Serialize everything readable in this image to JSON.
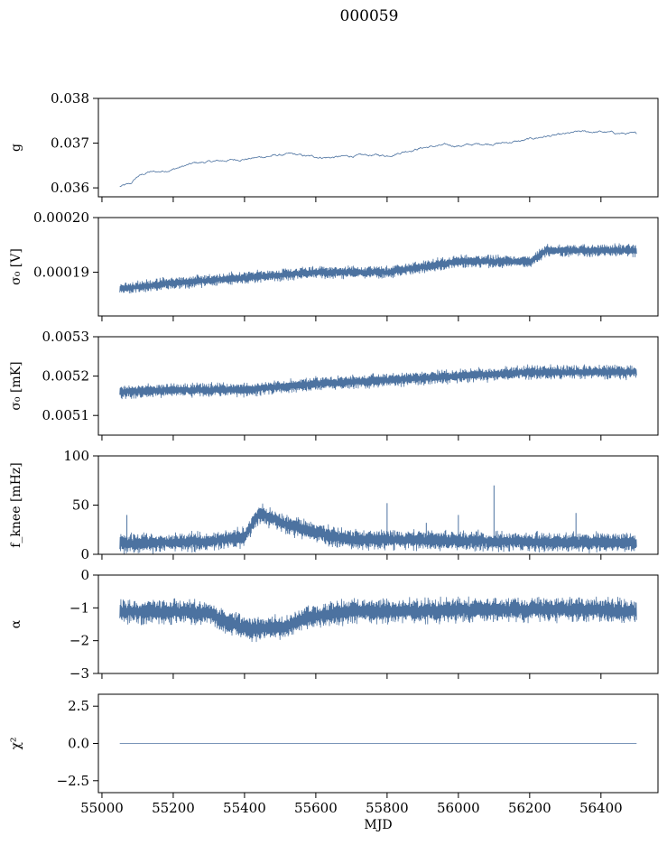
{
  "title": "000059",
  "chart_data": [
    {
      "type": "line",
      "ylabel": "g",
      "ylim": [
        0.0358,
        0.038
      ],
      "yticks": [
        0.036,
        0.037,
        0.038
      ],
      "ytick_labels": [
        "0.036",
        "0.037",
        "0.038"
      ],
      "xlim": [
        54990,
        56560
      ],
      "color": "#4c72a0",
      "style": "trace",
      "noise": 2e-05,
      "series": [
        {
          "x": [
            55050,
            55080,
            55100,
            55130,
            55160,
            55200,
            55260,
            55300,
            55360,
            55420,
            55480,
            55530,
            55580,
            55640,
            55700,
            55760,
            55800,
            55850,
            55900,
            55960,
            56000,
            56060,
            56120,
            56180,
            56240,
            56290,
            56340,
            56400,
            56450,
            56500
          ],
          "y": [
            0.03603,
            0.03608,
            0.03625,
            0.03635,
            0.03636,
            0.03642,
            0.03655,
            0.03658,
            0.03662,
            0.03666,
            0.03672,
            0.03675,
            0.0367,
            0.03668,
            0.03671,
            0.03673,
            0.03672,
            0.03682,
            0.0369,
            0.03695,
            0.03694,
            0.03698,
            0.037,
            0.03705,
            0.03715,
            0.03718,
            0.03725,
            0.03725,
            0.03722,
            0.0372
          ]
        }
      ]
    },
    {
      "type": "line",
      "ylabel": "σ₀ [V]",
      "ylim": [
        0.000182,
        0.0002
      ],
      "yticks": [
        0.00019,
        0.0002
      ],
      "ytick_labels": [
        "0.00019",
        "0.00020"
      ],
      "xlim": [
        54990,
        56560
      ],
      "color": "#4c72a0",
      "style": "band",
      "noise": 9e-07,
      "series": [
        {
          "x": [
            55050,
            55200,
            55400,
            55600,
            55800,
            55900,
            56000,
            56200,
            56250,
            56400,
            56500
          ],
          "y": [
            0.000187,
            0.000188,
            0.000189,
            0.00019,
            0.00019,
            0.000191,
            0.000192,
            0.000192,
            0.000194,
            0.000194,
            0.000194
          ]
        }
      ]
    },
    {
      "type": "line",
      "ylabel": "σ₀ [mK]",
      "ylim": [
        0.00505,
        0.0053
      ],
      "yticks": [
        0.0051,
        0.0052,
        0.0053
      ],
      "ytick_labels": [
        "0.0051",
        "0.0052",
        "0.0053"
      ],
      "xlim": [
        54990,
        56560
      ],
      "color": "#4c72a0",
      "style": "band",
      "noise": 1.4e-05,
      "series": [
        {
          "x": [
            55050,
            55200,
            55400,
            55600,
            55800,
            56000,
            56200,
            56400,
            56500
          ],
          "y": [
            0.00516,
            0.005165,
            0.005165,
            0.00518,
            0.00519,
            0.0052,
            0.00521,
            0.00521,
            0.00521
          ]
        }
      ]
    },
    {
      "type": "line",
      "ylabel": "f_knee [mHz]",
      "ylim": [
        0,
        100
      ],
      "yticks": [
        0,
        50,
        100
      ],
      "ytick_labels": [
        "0",
        "50",
        "100"
      ],
      "xlim": [
        54990,
        56560
      ],
      "color": "#4c72a0",
      "style": "band",
      "noise": 8,
      "series": [
        {
          "x": [
            55050,
            55300,
            55400,
            55440,
            55520,
            55600,
            55700,
            56000,
            56300,
            56500
          ],
          "y": [
            11,
            13,
            17,
            42,
            30,
            22,
            15,
            14,
            12,
            12
          ]
        }
      ],
      "spikes": [
        {
          "x": 55070,
          "y": 40
        },
        {
          "x": 55800,
          "y": 52
        },
        {
          "x": 55910,
          "y": 32
        },
        {
          "x": 56000,
          "y": 40
        },
        {
          "x": 56100,
          "y": 70
        },
        {
          "x": 56330,
          "y": 42
        }
      ]
    },
    {
      "type": "line",
      "ylabel": "α",
      "ylim": [
        -3,
        0
      ],
      "yticks": [
        -3,
        -2,
        -1,
        0
      ],
      "ytick_labels": [
        "−3",
        "−2",
        "−1",
        "0"
      ],
      "xlim": [
        54990,
        56560
      ],
      "color": "#4c72a0",
      "style": "band",
      "noise": 0.3,
      "series": [
        {
          "x": [
            55050,
            55300,
            55350,
            55420,
            55520,
            55580,
            55700,
            55900,
            56100,
            56300,
            56500
          ],
          "y": [
            -1.1,
            -1.15,
            -1.45,
            -1.65,
            -1.55,
            -1.3,
            -1.1,
            -1.1,
            -1.05,
            -1.05,
            -1.1
          ]
        }
      ]
    },
    {
      "type": "line",
      "ylabel": "χ²",
      "xlabel": "MJD",
      "ylim": [
        -3.3,
        3.3
      ],
      "yticks": [
        -2.5,
        0,
        2.5
      ],
      "ytick_labels": [
        "−2.5",
        "0.0",
        "2.5"
      ],
      "xlim": [
        54990,
        56560
      ],
      "xticks": [
        55000,
        55200,
        55400,
        55600,
        55800,
        56000,
        56200,
        56400
      ],
      "xtick_labels": [
        "55000",
        "55200",
        "55400",
        "55600",
        "55800",
        "56000",
        "56200",
        "56400"
      ],
      "color": "#4c72a0",
      "style": "flat",
      "series": [
        {
          "x": [
            55050,
            56500
          ],
          "y": [
            0,
            0
          ]
        }
      ]
    }
  ],
  "shared_xticks": [
    55000,
    55200,
    55400,
    55600,
    55800,
    56000,
    56200,
    56400
  ]
}
